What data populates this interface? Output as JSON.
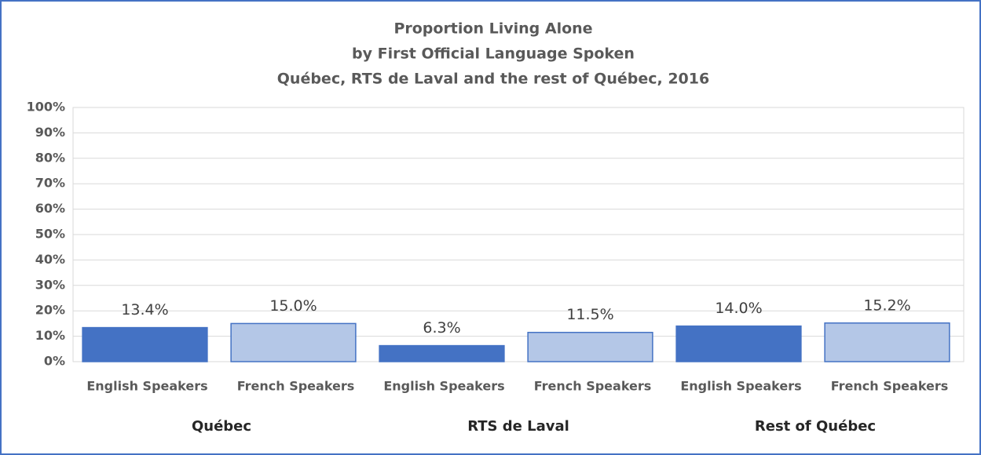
{
  "chart_data": {
    "type": "bar",
    "title": [
      "Proportion  Living Alone",
      "by First Official Language Spoken",
      "Québec, RTS de Laval and the rest of Québec, 2016"
    ],
    "categories": [
      "Québec",
      "RTS de Laval",
      "Rest of Québec"
    ],
    "series": [
      {
        "name": "English Speakers",
        "color": "#4472c4",
        "values": [
          13.4,
          6.3,
          14.0
        ],
        "value_labels": [
          "13.4%",
          "6.3%",
          "14.0%"
        ]
      },
      {
        "name": "French Speakers",
        "color": "#b4c7e7",
        "values": [
          15.0,
          11.5,
          15.2
        ],
        "value_labels": [
          "15.0%",
          "11.5%",
          "15.2%"
        ]
      }
    ],
    "ylim": [
      0,
      100
    ],
    "yticks": [
      {
        "value": 0,
        "label": "0%"
      },
      {
        "value": 10,
        "label": "10%"
      },
      {
        "value": 20,
        "label": "20%"
      },
      {
        "value": 30,
        "label": "30%"
      },
      {
        "value": 40,
        "label": "40%"
      },
      {
        "value": 50,
        "label": "50%"
      },
      {
        "value": 60,
        "label": "60%"
      },
      {
        "value": 70,
        "label": "70%"
      },
      {
        "value": 80,
        "label": "80%"
      },
      {
        "value": 90,
        "label": "90%"
      },
      {
        "value": 100,
        "label": "100%"
      }
    ],
    "grid": true
  }
}
